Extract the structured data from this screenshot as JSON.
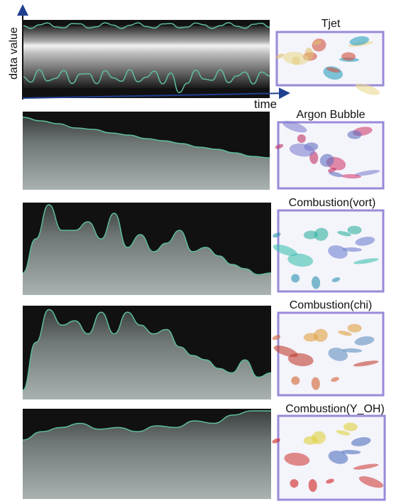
{
  "axes": {
    "y_label": "data value",
    "x_label": "time"
  },
  "panels": [
    {
      "label": "Tjet"
    },
    {
      "label": "Argon Bubble"
    },
    {
      "label": "Combustion(vort)"
    },
    {
      "label": "Combustion(chi)"
    },
    {
      "label": "Combustion(Y_OH)"
    }
  ]
}
